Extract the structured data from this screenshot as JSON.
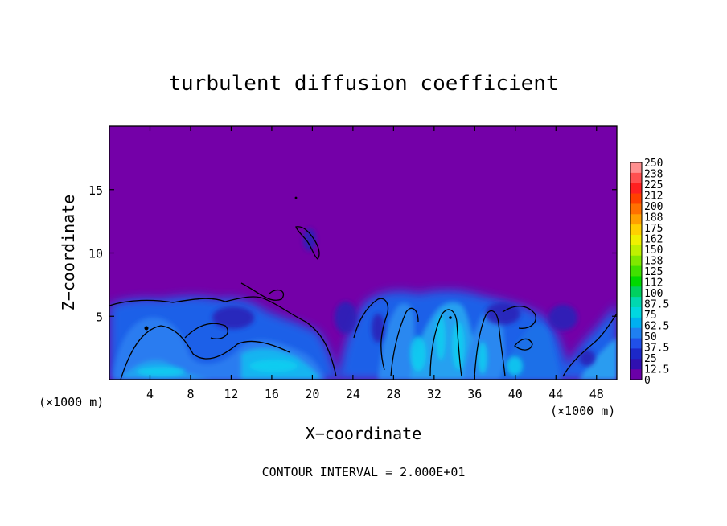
{
  "chart_data": {
    "type": "heatmap",
    "title": "turbulent diffusion coefficient",
    "xlabel": "X−coordinate",
    "ylabel": "Z−coordinate",
    "x_unit_left": "(×1000 m)",
    "x_unit_right": "(×1000 m)",
    "xlim": [
      0,
      50
    ],
    "ylim": [
      0,
      20
    ],
    "x_ticks": [
      4,
      8,
      12,
      16,
      20,
      24,
      28,
      32,
      36,
      40,
      44,
      48
    ],
    "y_ticks": [
      5,
      10,
      15
    ],
    "footer": "CONTOUR INTERVAL = 2.000E+01",
    "colorbar": {
      "labels": [
        "250",
        "238",
        "225",
        "212",
        "200",
        "188",
        "175",
        "162",
        "150",
        "138",
        "125",
        "112",
        "100",
        "87.5",
        "75",
        "62.5",
        "50",
        "37.5",
        "25",
        "12.5",
        "0"
      ],
      "colors": [
        "#ff9090",
        "#ff5050",
        "#ff2020",
        "#ff4000",
        "#ff7000",
        "#ffa000",
        "#ffd000",
        "#f0f000",
        "#c0f000",
        "#80e800",
        "#40e000",
        "#00d800",
        "#00d060",
        "#00d8b0",
        "#00d8e0",
        "#00b0f0",
        "#1f80f0",
        "#2050e8",
        "#1c28c8",
        "#3010b0",
        "#6a00a8"
      ]
    },
    "background_color": "#7400a8",
    "field": "near-zero values (purple) above ~6 km; turbulent boundary layer 0–6 km with values mostly 25–75, peaks near x=28–40"
  }
}
